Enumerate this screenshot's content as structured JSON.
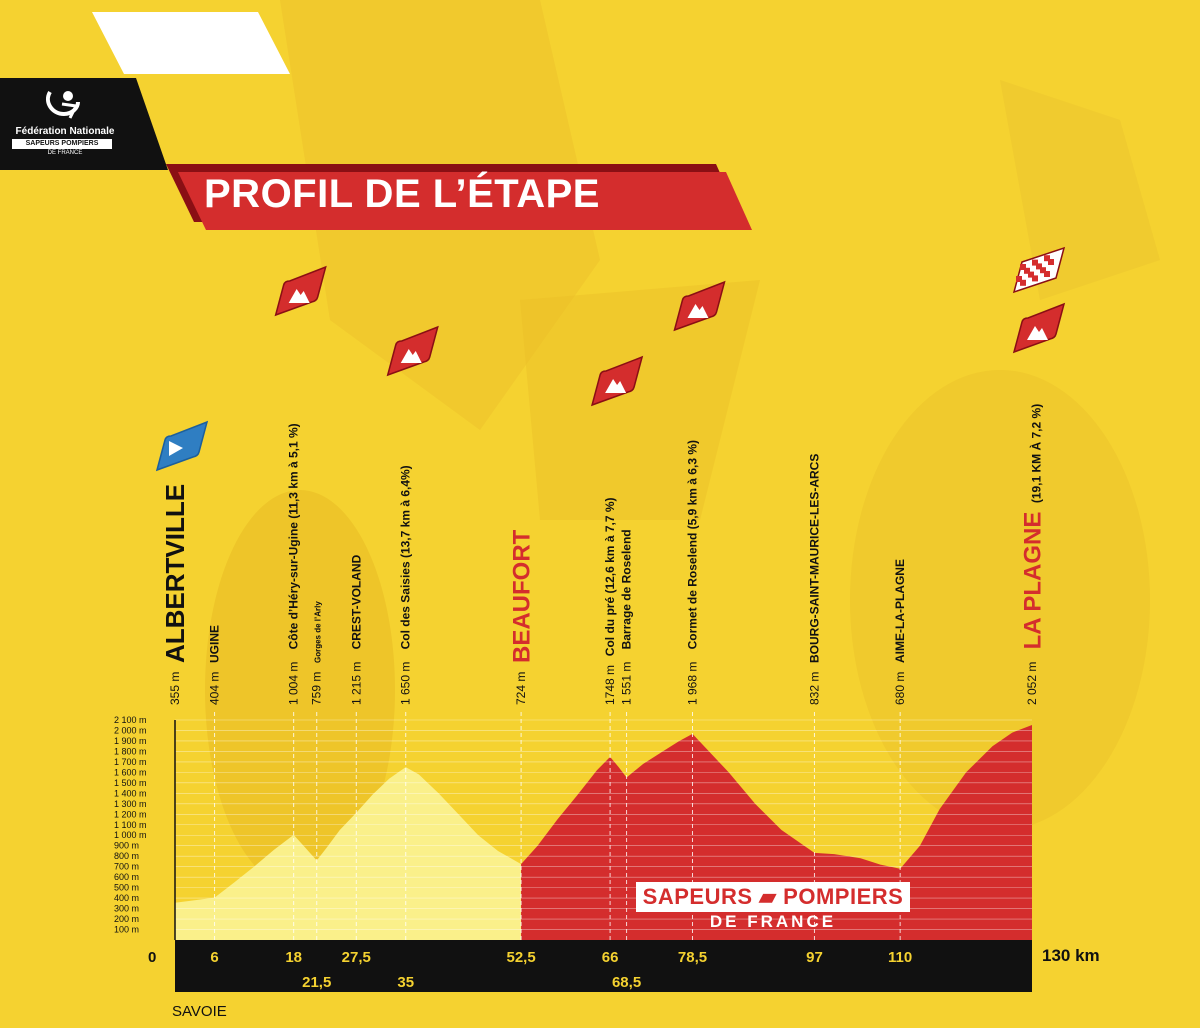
{
  "page": {
    "org_line1": "Fédération Nationale",
    "org_line2": "SAPEURS POMPIERS",
    "org_line3": "DE FRANCE",
    "title": "PROFIL DE L’ÉTAPE",
    "brand_line1": "SAPEURS ▰ POMPIERS",
    "brand_line2": "DE FRANCE",
    "region": "SAVOIE",
    "distance_unit": "130 km",
    "colors": {
      "yellow": "#f5d230",
      "red": "#d42d2d",
      "black": "#111111",
      "blue": "#2f7ec2",
      "pale_yellow": "#faf08a"
    }
  },
  "chart_data": {
    "type": "area",
    "title": "PROFIL DE L’ÉTAPE",
    "xlabel": "km",
    "ylabel": "",
    "xlim": [
      0,
      130
    ],
    "ylim": [
      0,
      2100
    ],
    "y_ticks": [
      "100 m",
      "200 m",
      "300 m",
      "400 m",
      "500 m",
      "600 m",
      "700 m",
      "800 m",
      "900 m",
      "1 000 m",
      "1 100 m",
      "1 200 m",
      "1 300 m",
      "1 400 m",
      "1 500 m",
      "1 600 m",
      "1 700 m",
      "1 800 m",
      "1 900 m",
      "2 000 m",
      "2 100 m"
    ],
    "x_origin_label": "0",
    "profile": [
      [
        0,
        355
      ],
      [
        3,
        380
      ],
      [
        6,
        404
      ],
      [
        9,
        550
      ],
      [
        12,
        700
      ],
      [
        15,
        860
      ],
      [
        18,
        1004
      ],
      [
        19.5,
        900
      ],
      [
        21.5,
        759
      ],
      [
        23,
        880
      ],
      [
        25,
        1050
      ],
      [
        27.5,
        1215
      ],
      [
        30,
        1390
      ],
      [
        32.5,
        1540
      ],
      [
        35,
        1650
      ],
      [
        37,
        1580
      ],
      [
        40,
        1400
      ],
      [
        43,
        1200
      ],
      [
        46,
        1000
      ],
      [
        49,
        850
      ],
      [
        52.5,
        724
      ],
      [
        55,
        900
      ],
      [
        58,
        1150
      ],
      [
        61,
        1380
      ],
      [
        64,
        1620
      ],
      [
        66,
        1748
      ],
      [
        67.3,
        1650
      ],
      [
        68.5,
        1551
      ],
      [
        71,
        1680
      ],
      [
        74,
        1800
      ],
      [
        76.5,
        1900
      ],
      [
        78.5,
        1968
      ],
      [
        81,
        1800
      ],
      [
        84,
        1600
      ],
      [
        88,
        1300
      ],
      [
        92,
        1050
      ],
      [
        97,
        832
      ],
      [
        100,
        820
      ],
      [
        104,
        780
      ],
      [
        107,
        720
      ],
      [
        110,
        680
      ],
      [
        113,
        900
      ],
      [
        116,
        1250
      ],
      [
        120,
        1600
      ],
      [
        124,
        1850
      ],
      [
        127,
        1980
      ],
      [
        130,
        2052
      ]
    ],
    "segments": [
      {
        "from_km": 0,
        "to_km": 52.5,
        "color": "#faf08a"
      },
      {
        "from_km": 52.5,
        "to_km": 130,
        "color": "#d42d2d"
      }
    ],
    "points": [
      {
        "km": 0,
        "km_label": "",
        "altitude": "355 m",
        "name": "ALBERTVILLE",
        "style": "major",
        "marker": "start"
      },
      {
        "km": 6,
        "km_label": "6",
        "altitude": "404 m",
        "name": "UGINE",
        "style": "town"
      },
      {
        "km": 18,
        "km_label": "18",
        "altitude": "1 004 m",
        "name": "Côte d’Héry-sur-Ugine (11,3 km à 5,1 %)",
        "style": "climb",
        "marker": "climb"
      },
      {
        "km": 21.5,
        "km_label": "21,5",
        "altitude": "759 m",
        "name": "Gorges de l’Arly",
        "style": "small"
      },
      {
        "km": 27.5,
        "km_label": "27,5",
        "altitude": "1 215 m",
        "name": "CREST-VOLAND",
        "style": "town"
      },
      {
        "km": 35,
        "km_label": "35",
        "altitude": "1 650 m",
        "name": "Col des Saisies (13,7 km à 6,4%)",
        "style": "climb",
        "marker": "climb"
      },
      {
        "km": 52.5,
        "km_label": "52,5",
        "altitude": "724 m",
        "name": "BEAUFORT",
        "style": "major-red"
      },
      {
        "km": 66,
        "km_label": "66",
        "altitude": "1748 m",
        "name": "Col du pré (12,6 km à 7,7 %)",
        "style": "climb",
        "marker": "climb"
      },
      {
        "km": 68.5,
        "km_label": "68,5",
        "altitude": "1 551 m",
        "name": "Barrage de Roselend",
        "style": "climb"
      },
      {
        "km": 78.5,
        "km_label": "78,5",
        "altitude": "1 968 m",
        "name": "Cormet de Roselend (5,9 km à 6,3 %)",
        "style": "climb",
        "marker": "climb"
      },
      {
        "km": 97,
        "km_label": "97",
        "altitude": "832 m",
        "name": "BOURG-SAINT-MAURICE-LES-ARCS",
        "style": "town"
      },
      {
        "km": 110,
        "km_label": "110",
        "altitude": "680 m",
        "name": "AIME-LA-PLAGNE",
        "style": "town"
      },
      {
        "km": 130,
        "km_label": "",
        "altitude": "2 052 m",
        "name": "LA PLAGNE",
        "extra": "(19,1 KM À 7,2 %)",
        "style": "finish",
        "marker": "finish"
      }
    ],
    "grid": false,
    "legend": "none"
  }
}
